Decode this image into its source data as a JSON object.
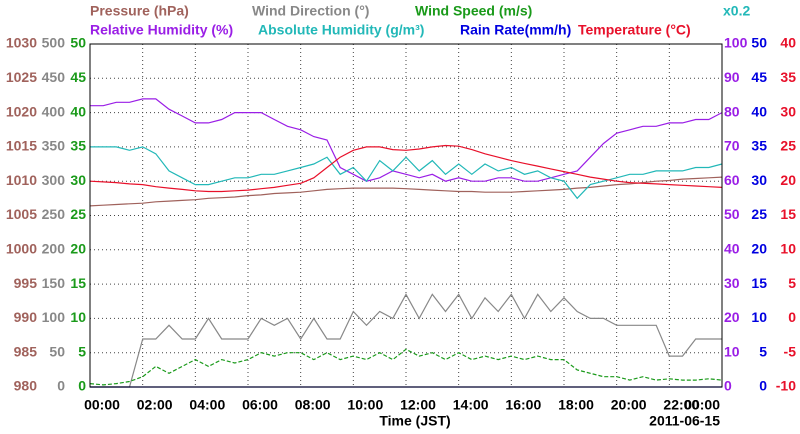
{
  "chart_data": {
    "type": "line",
    "x_label": "Time (JST)",
    "date_label": "2011-06-15",
    "xlim": [
      0,
      24
    ],
    "xticks": [
      {
        "value": 0,
        "label": "00:00"
      },
      {
        "value": 2,
        "label": "02:00"
      },
      {
        "value": 4,
        "label": "04:00"
      },
      {
        "value": 6,
        "label": "06:00"
      },
      {
        "value": 8,
        "label": "08:00"
      },
      {
        "value": 10,
        "label": "10:00"
      },
      {
        "value": 12,
        "label": "12:00"
      },
      {
        "value": 14,
        "label": "14:00"
      },
      {
        "value": 16,
        "label": "16:00"
      },
      {
        "value": 18,
        "label": "18:00"
      },
      {
        "value": 20,
        "label": "20:00"
      },
      {
        "value": 22,
        "label": "22:00"
      },
      {
        "value": 24,
        "label": "00:00"
      }
    ],
    "grid": true,
    "ylim": [
      980,
      1030
    ],
    "yticks": [
      980,
      985,
      990,
      995,
      1000,
      1005,
      1010,
      1015,
      1020,
      1025,
      1030
    ],
    "y2lim": [
      0,
      500
    ],
    "y2ticks": [
      0,
      50,
      100,
      150,
      200,
      250,
      300,
      350,
      400,
      450,
      500
    ],
    "y3lim": [
      0,
      50
    ],
    "y3ticks": [
      0,
      5,
      10,
      15,
      20,
      25,
      30,
      35,
      40,
      45,
      50
    ],
    "y4lim": [
      0,
      100
    ],
    "y4ticks": [
      0,
      10,
      20,
      30,
      40,
      50,
      60,
      70,
      80,
      90,
      100
    ],
    "y5lim": [
      0,
      50
    ],
    "y5ticks": [
      0,
      5,
      10,
      15,
      20,
      25,
      30,
      35,
      40,
      45,
      50
    ],
    "y6lim": [
      -10,
      40
    ],
    "y6ticks": [
      -10,
      -5,
      0,
      5,
      10,
      15,
      20,
      25,
      30,
      35,
      40
    ],
    "x": [
      0,
      0.5,
      1,
      1.5,
      2,
      2.5,
      3,
      3.5,
      4,
      4.5,
      5,
      5.5,
      6,
      6.5,
      7,
      7.5,
      8,
      8.5,
      9,
      9.5,
      10,
      10.5,
      11,
      11.5,
      12,
      12.5,
      13,
      13.5,
      14,
      14.5,
      15,
      15.5,
      16,
      16.5,
      17,
      17.5,
      18,
      18.5,
      19,
      19.5,
      20,
      20.5,
      21,
      21.5,
      22,
      22.5,
      23,
      23.5,
      24
    ],
    "series": [
      {
        "name": "Pressure (hPa)",
        "color": "#a0625c",
        "axis": "y",
        "values": [
          1006.4,
          1006.5,
          1006.6,
          1006.7,
          1006.8,
          1007,
          1007.1,
          1007.2,
          1007.3,
          1007.5,
          1007.6,
          1007.7,
          1007.9,
          1008,
          1008.2,
          1008.3,
          1008.4,
          1008.6,
          1008.8,
          1008.9,
          1009,
          1009,
          1009,
          1009,
          1008.9,
          1008.8,
          1008.7,
          1008.6,
          1008.5,
          1008.5,
          1008.4,
          1008.4,
          1008.4,
          1008.5,
          1008.6,
          1008.7,
          1008.8,
          1009,
          1009.1,
          1009.3,
          1009.5,
          1009.6,
          1009.8,
          1010,
          1010.1,
          1010.3,
          1010.4,
          1010.5,
          1010.6
        ]
      },
      {
        "name": "Wind Direction (°)",
        "color": "#888888",
        "axis": "y2",
        "values": [
          0,
          0,
          0,
          0,
          70,
          70,
          90,
          70,
          70,
          100,
          70,
          70,
          70,
          100,
          90,
          100,
          70,
          100,
          70,
          70,
          110,
          90,
          110,
          100,
          135,
          100,
          135,
          110,
          135,
          100,
          130,
          110,
          135,
          100,
          135,
          110,
          130,
          110,
          100,
          100,
          90,
          90,
          90,
          90,
          45,
          45,
          70,
          70,
          70
        ]
      },
      {
        "name": "Wind Speed (m/s)",
        "color": "#1a9a1a",
        "axis": "y3",
        "dashed": true,
        "values": [
          0.5,
          0.3,
          0.5,
          0.8,
          1.5,
          3,
          2,
          3,
          4,
          3,
          4,
          3.5,
          4,
          5,
          4.5,
          5,
          5,
          4,
          5,
          4,
          4.5,
          4,
          5,
          4,
          5.5,
          4.5,
          5,
          4,
          5,
          4,
          4.5,
          4,
          4.5,
          4,
          4.5,
          4,
          4,
          2.5,
          2,
          1.5,
          1.5,
          1,
          1.5,
          1,
          1.2,
          1,
          1,
          1.2,
          1
        ]
      },
      {
        "name": "Relative Humidity (%)",
        "color": "#9a1ee6",
        "axis": "y4",
        "values": [
          82,
          82,
          83,
          83,
          84,
          84,
          81,
          79,
          77,
          77,
          78,
          80,
          80,
          80,
          78,
          76,
          75,
          73,
          72,
          64,
          62,
          60,
          61,
          63,
          62,
          61,
          62,
          60,
          61,
          60,
          60,
          61,
          61,
          60,
          60,
          61,
          62,
          63,
          67,
          71,
          74,
          75,
          76,
          76,
          77,
          77,
          78,
          78,
          80
        ]
      },
      {
        "name": "Absolute Humidity (g/m³)",
        "color": "#22b8b8",
        "axis": "y4",
        "scale_label": "x0.2",
        "values": [
          70,
          70,
          70,
          69,
          70,
          68,
          63,
          61,
          59,
          59,
          60,
          61,
          61,
          62,
          62,
          63,
          64,
          65,
          67,
          62,
          64,
          60,
          66,
          63,
          67,
          63,
          66,
          62,
          65,
          62,
          65,
          63,
          64,
          62,
          63,
          61,
          60,
          55,
          59,
          60,
          61,
          62,
          62,
          63,
          63,
          63,
          64,
          64,
          65
        ]
      },
      {
        "name": "Rain Rate(mm/h)",
        "color": "#0000e0",
        "axis": "y5",
        "values": [
          0,
          0,
          0,
          0,
          0,
          0,
          0,
          0,
          0,
          0,
          0,
          0,
          0,
          0,
          0,
          0,
          0,
          0,
          0,
          0,
          0,
          0,
          0,
          0,
          0,
          0,
          0,
          0,
          0,
          0,
          0,
          0,
          0,
          0,
          0,
          0,
          0,
          0,
          0,
          0,
          0,
          0,
          0,
          0,
          0,
          0,
          0,
          0,
          0
        ]
      },
      {
        "name": "Temperature (°C)",
        "color": "#e8102a",
        "axis": "y6",
        "values": [
          20,
          19.9,
          19.8,
          19.6,
          19.5,
          19.2,
          19,
          18.8,
          18.6,
          18.5,
          18.5,
          18.6,
          18.7,
          18.9,
          19.1,
          19.4,
          19.7,
          20.5,
          22,
          23.5,
          24.5,
          25,
          25,
          24.6,
          24.5,
          24.7,
          25,
          25.2,
          25.1,
          24.6,
          24,
          23.5,
          23,
          22.6,
          22.2,
          21.8,
          21.4,
          21,
          20.6,
          20.3,
          20,
          19.8,
          19.7,
          19.6,
          19.5,
          19.4,
          19.3,
          19.2,
          19.1
        ]
      }
    ]
  }
}
